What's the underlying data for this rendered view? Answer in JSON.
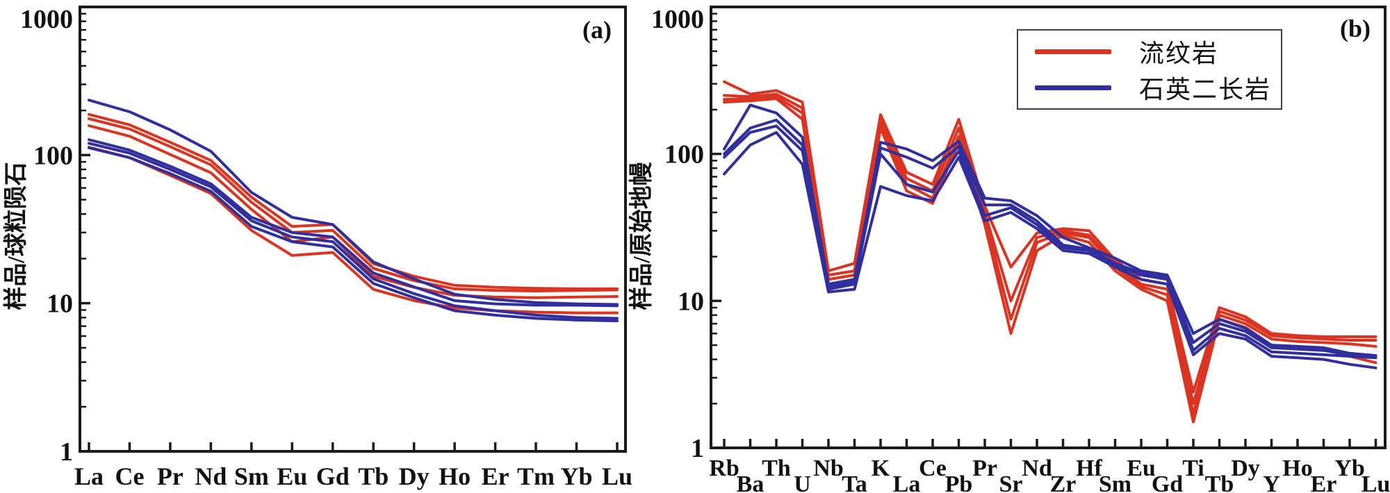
{
  "figure": {
    "panel_a_label": "(a)",
    "panel_b_label": "(b)",
    "colors": {
      "red": "#D93522",
      "blue": "#302F9D",
      "axis": "#1a1a1a"
    }
  },
  "legend": {
    "entries": [
      {
        "label": "流纹岩",
        "color_key": "red"
      },
      {
        "label": "石英二长岩",
        "color_key": "blue"
      }
    ]
  },
  "chart_data": [
    {
      "id": "a",
      "type": "line",
      "y_scale": "log",
      "ylim": [
        1,
        1000
      ],
      "y_ticks": [
        "1",
        "10",
        "100",
        "1000"
      ],
      "ylabel": "样品/球粒陨石",
      "panel_label": "(a)",
      "label_layout": "single",
      "grid": false,
      "categories": [
        "La",
        "Ce",
        "Pr",
        "Nd",
        "Sm",
        "Eu",
        "Gd",
        "Tb",
        "Dy",
        "Ho",
        "Er",
        "Tm",
        "Yb",
        "Lu"
      ],
      "series": [
        {
          "name": "流纹岩-1",
          "group": "rhyolite",
          "color_key": "red",
          "values": [
            188,
            160,
            122,
            92,
            52,
            33,
            34,
            18.5,
            15.2,
            13.2,
            12.8,
            12.6,
            12.5,
            12.5
          ]
        },
        {
          "name": "流纹岩-2",
          "group": "rhyolite",
          "color_key": "red",
          "values": [
            176,
            150,
            114,
            86,
            48,
            30,
            31,
            17.2,
            14.2,
            12.5,
            12.2,
            12.1,
            12.2,
            12.3
          ]
        },
        {
          "name": "流纹岩-3",
          "group": "rhyolite",
          "color_key": "red",
          "values": [
            158,
            134,
            101,
            76,
            43,
            26,
            28,
            15.2,
            12.8,
            11.3,
            11.0,
            10.9,
            11.0,
            11.1
          ]
        },
        {
          "name": "流纹岩-4",
          "group": "rhyolite",
          "color_key": "red",
          "values": [
            113,
            96,
            73,
            55,
            31,
            21,
            22,
            12.4,
            10.4,
            9.3,
            8.9,
            8.7,
            8.6,
            8.6
          ]
        },
        {
          "name": "石英二长岩-1",
          "group": "quartz-monzonite",
          "color_key": "blue",
          "values": [
            235,
            196,
            148,
            106,
            56,
            38,
            34,
            19,
            14.6,
            11.5,
            10.6,
            10.1,
            9.9,
            9.8
          ]
        },
        {
          "name": "石英二长岩-2",
          "group": "quartz-monzonite",
          "color_key": "blue",
          "values": [
            127,
            108,
            84,
            64,
            38,
            30,
            28,
            16,
            12.9,
            10.4,
            9.9,
            9.7,
            9.7,
            9.6
          ]
        },
        {
          "name": "石英二长岩-3",
          "group": "quartz-monzonite",
          "color_key": "blue",
          "values": [
            120,
            103,
            80,
            61,
            36,
            28,
            26,
            14.6,
            11.6,
            9.6,
            8.9,
            8.3,
            8.0,
            7.9
          ]
        },
        {
          "name": "石英二长岩-4",
          "group": "quartz-monzonite",
          "color_key": "blue",
          "values": [
            112,
            96,
            75,
            57,
            33,
            26,
            24,
            13.6,
            10.9,
            8.9,
            8.3,
            7.9,
            7.7,
            7.6
          ]
        }
      ]
    },
    {
      "id": "b",
      "type": "line",
      "y_scale": "log",
      "ylim": [
        1,
        1000
      ],
      "y_ticks": [
        "1",
        "10",
        "100",
        "1000"
      ],
      "ylabel": "样品/原始地幔",
      "panel_label": "(b)",
      "label_layout": "staggered",
      "grid": false,
      "categories": [
        "Rb",
        "Ba",
        "Th",
        "U",
        "Nb",
        "Ta",
        "K",
        "La",
        "Ce",
        "Pb",
        "Pr",
        "Sr",
        "Nd",
        "Zr",
        "Hf",
        "Sm",
        "Eu",
        "Gd",
        "Ti",
        "Tb",
        "Dy",
        "Y",
        "Ho",
        "Er",
        "Yb",
        "Lu"
      ],
      "series": [
        {
          "name": "流纹岩-1",
          "group": "rhyolite",
          "color_key": "red",
          "values": [
            310,
            255,
            270,
            225,
            16,
            18,
            185,
            75,
            62,
            172,
            44,
            17,
            29,
            31,
            30,
            19,
            14,
            13,
            2.4,
            9.0,
            7.8,
            6.0,
            5.8,
            5.7,
            5.7,
            5.7
          ]
        },
        {
          "name": "流纹岩-2",
          "group": "rhyolite",
          "color_key": "red",
          "values": [
            250,
            245,
            255,
            205,
            15,
            16,
            170,
            68,
            56,
            150,
            40,
            10,
            27,
            30,
            28,
            18,
            13,
            12,
            2.0,
            8.5,
            7.4,
            5.8,
            5.6,
            5.5,
            5.4,
            5.4
          ]
        },
        {
          "name": "流纹岩-3",
          "group": "rhyolite",
          "color_key": "red",
          "values": [
            235,
            238,
            245,
            190,
            14,
            15,
            160,
            62,
            50,
            132,
            37,
            7.5,
            25,
            29,
            27,
            17,
            12.5,
            11,
            1.7,
            8.0,
            7.0,
            5.5,
            5.3,
            5.2,
            5.1,
            4.9
          ]
        },
        {
          "name": "流纹岩-4",
          "group": "rhyolite",
          "color_key": "red",
          "values": [
            225,
            230,
            238,
            172,
            13,
            14,
            150,
            56,
            46,
            120,
            33,
            6,
            22,
            28,
            25,
            16,
            12,
            10,
            1.5,
            7.5,
            6.6,
            5.0,
            4.9,
            4.7,
            4.2,
            3.8
          ]
        },
        {
          "name": "石英二长岩-1",
          "group": "quartz-monzonite",
          "color_key": "blue",
          "values": [
            108,
            215,
            190,
            130,
            13,
            14,
            120,
            108,
            90,
            122,
            50,
            48,
            38,
            27,
            23,
            19.5,
            16,
            15,
            6.0,
            7.5,
            6.5,
            5.0,
            4.9,
            4.8,
            4.4,
            4.25
          ]
        },
        {
          "name": "石英二长岩-2",
          "group": "quartz-monzonite",
          "color_key": "blue",
          "values": [
            100,
            150,
            170,
            115,
            12.5,
            13.5,
            110,
            95,
            80,
            112,
            45,
            45,
            35,
            24,
            22.5,
            18,
            15.5,
            14.5,
            5.2,
            7.0,
            6.2,
            4.8,
            4.7,
            4.6,
            4.3,
            4.15
          ]
        },
        {
          "name": "石英二长岩-3",
          "group": "quartz-monzonite",
          "color_key": "blue",
          "values": [
            95,
            140,
            155,
            105,
            12,
            13,
            100,
            62,
            55,
            105,
            38,
            43,
            33,
            23,
            22,
            17.5,
            15,
            14,
            4.6,
            6.5,
            5.8,
            4.5,
            4.4,
            4.3,
            4.2,
            4.1
          ]
        },
        {
          "name": "石英二长岩-4",
          "group": "quartz-monzonite",
          "color_key": "blue",
          "values": [
            73,
            115,
            140,
            85,
            11.5,
            12,
            60,
            52,
            48,
            95,
            35,
            40,
            31,
            22,
            21,
            17,
            14,
            13,
            4.3,
            6.0,
            5.5,
            4.2,
            4.1,
            4.0,
            3.7,
            3.5
          ]
        }
      ]
    }
  ]
}
